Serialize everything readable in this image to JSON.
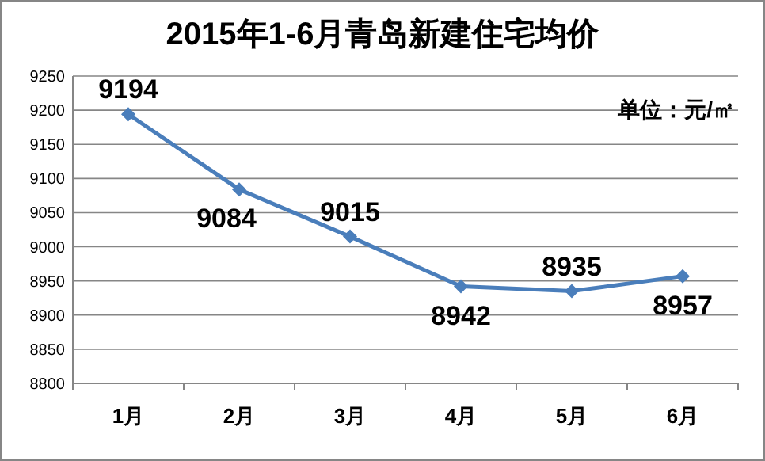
{
  "chart_data": {
    "type": "line",
    "title": "2015年1-6月青岛新建住宅均价",
    "annotations": [
      "单位：元/㎡"
    ],
    "categories": [
      "1月",
      "2月",
      "3月",
      "4月",
      "5月",
      "6月"
    ],
    "series": [
      {
        "color": "#4a7ebb",
        "values": [
          9194,
          9084,
          9015,
          8942,
          8935,
          8957
        ]
      }
    ],
    "ylim": [
      8800,
      9250
    ],
    "yticks": [
      8800,
      8850,
      8900,
      8950,
      9000,
      9050,
      9100,
      9150,
      9200,
      9250
    ],
    "grid": "y",
    "marker": "diamond",
    "line_style": "solid",
    "data_labels": true
  }
}
